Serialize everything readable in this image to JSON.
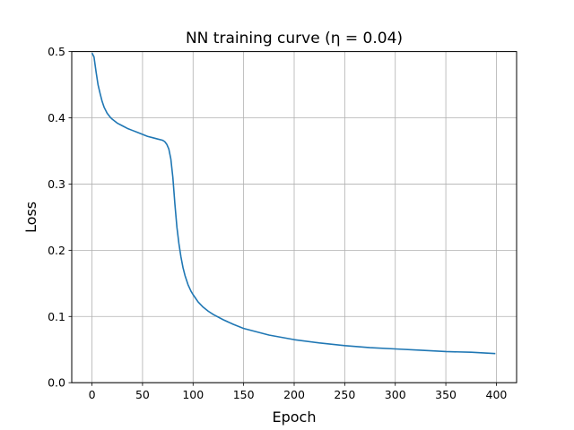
{
  "chart_data": {
    "type": "line",
    "title": "NN training curve (η = 0.04)",
    "xlabel": "Epoch",
    "ylabel": "Loss",
    "xlim": [
      -20,
      420
    ],
    "ylim": [
      0,
      0.5
    ],
    "xticks": [
      0,
      50,
      100,
      150,
      200,
      250,
      300,
      350,
      400
    ],
    "xtick_labels": [
      "0",
      "50",
      "100",
      "150",
      "200",
      "250",
      "300",
      "350",
      "400"
    ],
    "yticks": [
      0.0,
      0.1,
      0.2,
      0.3,
      0.4,
      0.5
    ],
    "ytick_labels": [
      "0.0",
      "0.1",
      "0.2",
      "0.3",
      "0.4",
      "0.5"
    ],
    "grid": true,
    "series": [
      {
        "color": "#1f77b4",
        "x": [
          0,
          2,
          4,
          6,
          8,
          10,
          12,
          15,
          18,
          20,
          25,
          30,
          35,
          40,
          45,
          50,
          55,
          60,
          65,
          70,
          72,
          74,
          76,
          78,
          80,
          82,
          84,
          86,
          88,
          90,
          92,
          95,
          98,
          100,
          105,
          110,
          115,
          120,
          130,
          140,
          150,
          175,
          200,
          225,
          250,
          275,
          300,
          325,
          350,
          375,
          399
        ],
        "y": [
          0.498,
          0.492,
          0.47,
          0.45,
          0.437,
          0.425,
          0.416,
          0.407,
          0.401,
          0.398,
          0.392,
          0.388,
          0.384,
          0.381,
          0.378,
          0.375,
          0.372,
          0.37,
          0.368,
          0.366,
          0.364,
          0.36,
          0.353,
          0.338,
          0.31,
          0.27,
          0.235,
          0.21,
          0.19,
          0.174,
          0.162,
          0.148,
          0.138,
          0.133,
          0.122,
          0.114,
          0.108,
          0.103,
          0.095,
          0.088,
          0.082,
          0.072,
          0.065,
          0.06,
          0.056,
          0.053,
          0.051,
          0.049,
          0.047,
          0.046,
          0.044
        ]
      }
    ]
  }
}
